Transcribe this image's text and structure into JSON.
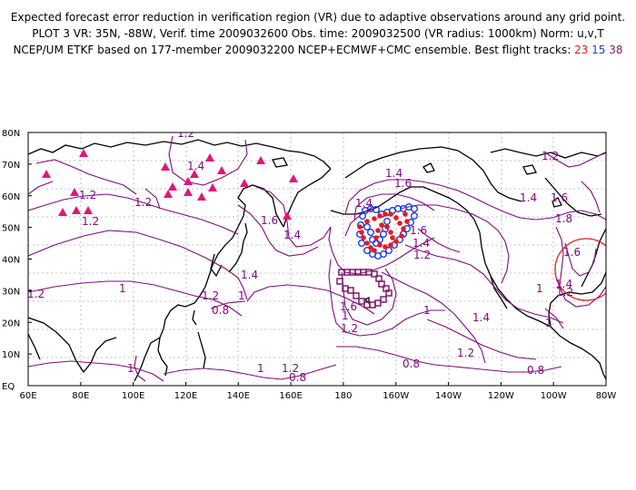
{
  "header": {
    "line1": "Expected forecast error reduction in verification region (VR) due to adaptive observations around any grid point.",
    "line2": "PLOT 3 VR: 35N, -88W, Verif. time 2009032600 Obs. time: 2009032500 (VR radius: 1000km) Norm: u,v,T",
    "line3_prefix": "NCEP/UM ETKF based on 177-member 2009032200 NCEP+ECMWF+CMC ensemble. Best flight tracks:",
    "track_red": "23",
    "track_blue": "15",
    "track_purple": "38"
  },
  "map": {
    "lat_labels": [
      "80N",
      "70N",
      "60N",
      "50N",
      "40N",
      "30N",
      "20N",
      "10N",
      "EQ"
    ],
    "lon_labels": [
      "60E",
      "80E",
      "100E",
      "120E",
      "140E",
      "160E",
      "180",
      "160W",
      "140W",
      "120W",
      "100W",
      "80W"
    ],
    "contour_labels": [
      "1.2",
      "1.4",
      "1.2",
      "1.2",
      "1.2",
      "1.6",
      "1.4",
      "1.4",
      "1.6",
      "1.4",
      "1.6",
      "1.2",
      "1.4",
      "1.6",
      "1.8",
      "1.4",
      "1.2",
      "1.6",
      "1.4",
      "1.2",
      "1.2",
      "1",
      "1.4",
      "1.2",
      "1",
      "0.8",
      "1.6",
      "1.2",
      "1",
      "1.4",
      "1",
      "1.2",
      "1",
      "1",
      "0.8",
      "0.8",
      "1",
      "1.2",
      "0.8",
      "1"
    ],
    "colors": {
      "contour": "#800a80",
      "grid": "#b0b0b0",
      "coast": "#000000",
      "triangle": "#e0167a",
      "track_red": "#e8191e",
      "track_blue": "#1f3de0",
      "track_purple": "#7d1b6b",
      "verification_circle": "#e8191e"
    }
  }
}
